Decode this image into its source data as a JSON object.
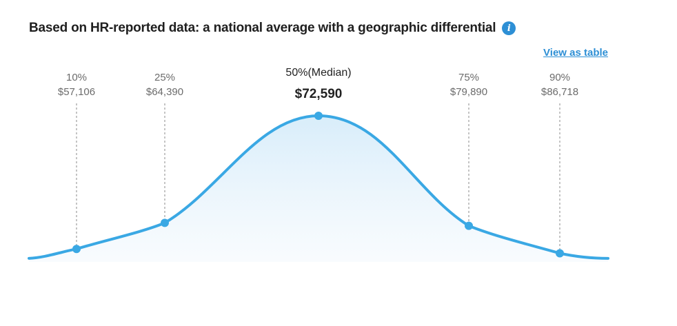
{
  "header": {
    "title": "Based on HR-reported data: a national average with a geographic differential",
    "info_icon": "info-icon",
    "view_table_label": "View as table"
  },
  "colors": {
    "accent": "#3aa8e4",
    "link": "#2d8fd5",
    "title": "#1f1f1f",
    "label": "#6b6b6b",
    "median_label": "#222222",
    "guide": "#aaaaaa"
  },
  "chart_data": {
    "type": "area",
    "title": "Based on HR-reported data: a national average with a geographic differential",
    "xlabel": "",
    "ylabel": "",
    "grid": false,
    "legend": "none",
    "percentiles": [
      {
        "percent": "10%",
        "salary": "$57,106",
        "value": 57106,
        "density": 0.08
      },
      {
        "percent": "25%",
        "salary": "$64,390",
        "value": 64390,
        "density": 0.26
      },
      {
        "percent": "50%(Median)",
        "salary": "$72,590",
        "value": 72590,
        "density": 1.0
      },
      {
        "percent": "75%",
        "salary": "$79,890",
        "value": 79890,
        "density": 0.24
      },
      {
        "percent": "90%",
        "salary": "$86,718",
        "value": 86718,
        "density": 0.05
      }
    ]
  }
}
